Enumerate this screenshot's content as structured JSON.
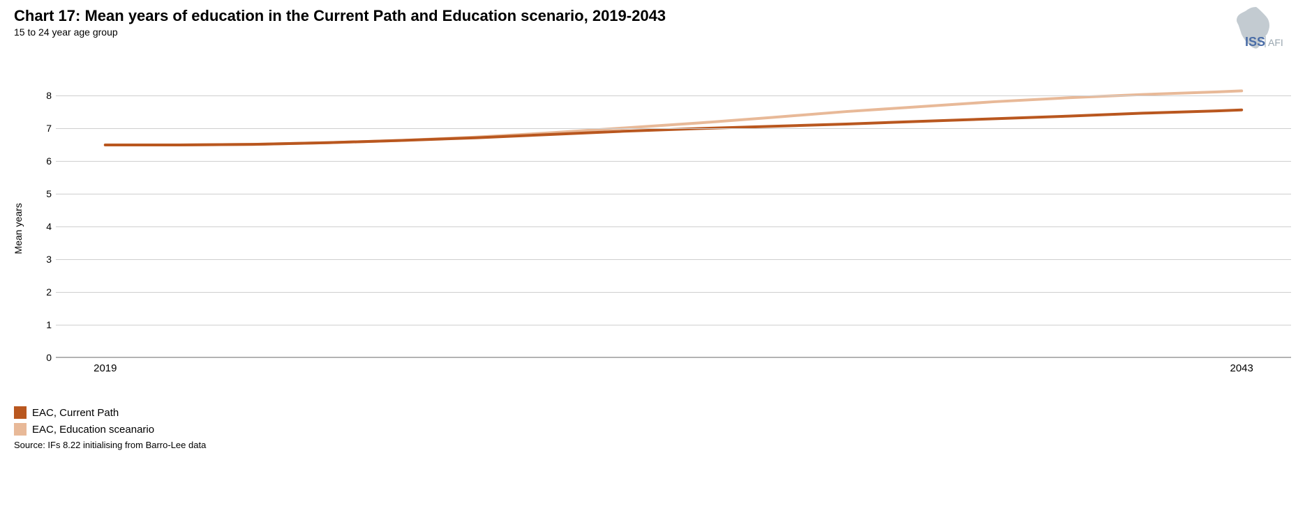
{
  "header": {
    "title": "Chart 17: Mean years of education in the Current Path and Education scenario, 2019-2043",
    "subtitle": "15 to 24 year age group",
    "logo_text_main": "ISS",
    "logo_text_sub": "AFI",
    "logo_color_main": "#4a6da7",
    "logo_color_sub": "#9aa7b0",
    "logo_map_color": "#c3cbd1"
  },
  "chart": {
    "type": "line",
    "ylabel": "Mean years",
    "label_fontsize": 14,
    "ylim": [
      0,
      8.5
    ],
    "ytick_step": 1,
    "y_ticks": [
      0,
      1,
      2,
      3,
      4,
      5,
      6,
      7,
      8
    ],
    "x_ticks": [
      {
        "label": "2019",
        "x": 0.04
      },
      {
        "label": "2043",
        "x": 0.96
      }
    ],
    "grid_color": "#cfcfcf",
    "axis_color": "#999999",
    "background_color": "#ffffff",
    "line_width": 4,
    "series": [
      {
        "name": "EAC, Current Path",
        "color": "#b9571f",
        "points": [
          {
            "x": 0.04,
            "y": 6.48
          },
          {
            "x": 0.1,
            "y": 6.48
          },
          {
            "x": 0.16,
            "y": 6.5
          },
          {
            "x": 0.22,
            "y": 6.55
          },
          {
            "x": 0.28,
            "y": 6.62
          },
          {
            "x": 0.34,
            "y": 6.7
          },
          {
            "x": 0.4,
            "y": 6.8
          },
          {
            "x": 0.46,
            "y": 6.9
          },
          {
            "x": 0.52,
            "y": 6.98
          },
          {
            "x": 0.58,
            "y": 7.05
          },
          {
            "x": 0.64,
            "y": 7.12
          },
          {
            "x": 0.7,
            "y": 7.2
          },
          {
            "x": 0.76,
            "y": 7.28
          },
          {
            "x": 0.82,
            "y": 7.36
          },
          {
            "x": 0.88,
            "y": 7.45
          },
          {
            "x": 0.94,
            "y": 7.52
          },
          {
            "x": 0.96,
            "y": 7.55
          }
        ]
      },
      {
        "name": "EAC, Education sceanario",
        "color": "#e8b998",
        "points": [
          {
            "x": 0.04,
            "y": 6.48
          },
          {
            "x": 0.1,
            "y": 6.48
          },
          {
            "x": 0.16,
            "y": 6.5
          },
          {
            "x": 0.22,
            "y": 6.55
          },
          {
            "x": 0.28,
            "y": 6.62
          },
          {
            "x": 0.34,
            "y": 6.72
          },
          {
            "x": 0.4,
            "y": 6.85
          },
          {
            "x": 0.46,
            "y": 7.0
          },
          {
            "x": 0.52,
            "y": 7.15
          },
          {
            "x": 0.58,
            "y": 7.32
          },
          {
            "x": 0.64,
            "y": 7.5
          },
          {
            "x": 0.7,
            "y": 7.65
          },
          {
            "x": 0.76,
            "y": 7.8
          },
          {
            "x": 0.82,
            "y": 7.92
          },
          {
            "x": 0.88,
            "y": 8.02
          },
          {
            "x": 0.94,
            "y": 8.1
          },
          {
            "x": 0.96,
            "y": 8.13
          }
        ]
      }
    ]
  },
  "legend": {
    "items": [
      {
        "color": "#b9571f",
        "label": "EAC, Current Path"
      },
      {
        "color": "#e8b998",
        "label": "EAC, Education sceanario"
      }
    ]
  },
  "source": "Source: IFs 8.22 initialising from Barro-Lee data"
}
